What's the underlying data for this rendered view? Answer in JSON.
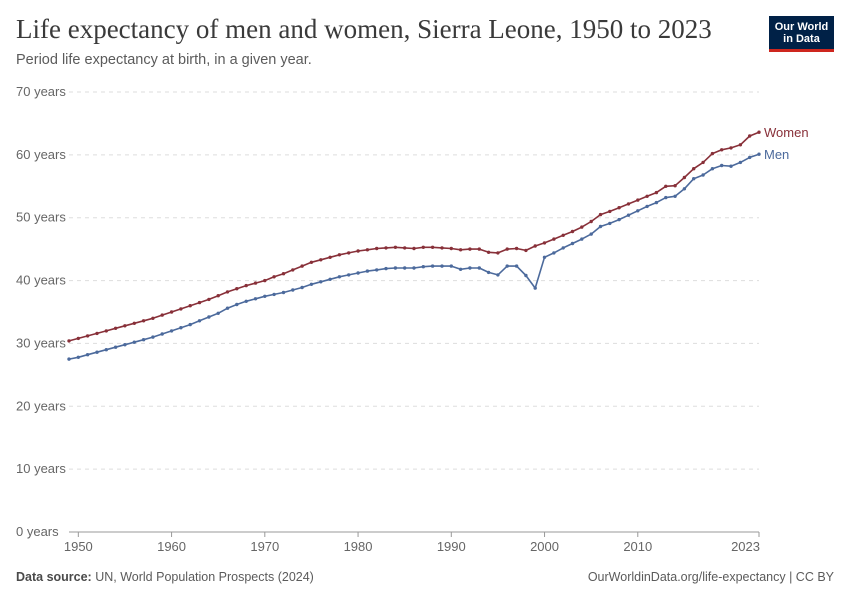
{
  "header": {
    "title": "Life expectancy of men and women, Sierra Leone, 1950 to 2023",
    "subtitle": "Period life expectancy at birth, in a given year."
  },
  "logo": {
    "line1": "Our World",
    "line2": "in Data",
    "bg_color": "#002147",
    "accent_color": "#ce261e"
  },
  "footer": {
    "source_label": "Data source:",
    "source_value": "UN, World Population Prospects (2024)",
    "url": "OurWorldinData.org/life-expectancy | CC BY"
  },
  "chart_data": {
    "type": "line",
    "title": "Life expectancy of men and women, Sierra Leone, 1950 to 2023",
    "subtitle": "Period life expectancy at birth, in a given year.",
    "ylim": [
      0,
      70
    ],
    "xlim": [
      1949,
      2023
    ],
    "y_ticks": [
      0,
      10,
      20,
      30,
      40,
      50,
      60,
      70
    ],
    "y_tick_labels": [
      "0 years",
      "10 years",
      "20 years",
      "30 years",
      "40 years",
      "50 years",
      "60 years",
      "70 years"
    ],
    "x_ticks": [
      1950,
      1960,
      1970,
      1980,
      1990,
      2000,
      2010,
      2023
    ],
    "x_tick_labels": [
      "1950",
      "1960",
      "1970",
      "1980",
      "1990",
      "2000",
      "2010",
      "2023"
    ],
    "grid": "horizontal dashed",
    "legend": "line-end labels, right",
    "x": [
      1949,
      1950,
      1951,
      1952,
      1953,
      1954,
      1955,
      1956,
      1957,
      1958,
      1959,
      1960,
      1961,
      1962,
      1963,
      1964,
      1965,
      1966,
      1967,
      1968,
      1969,
      1970,
      1971,
      1972,
      1973,
      1974,
      1975,
      1976,
      1977,
      1978,
      1979,
      1980,
      1981,
      1982,
      1983,
      1984,
      1985,
      1986,
      1987,
      1988,
      1989,
      1990,
      1991,
      1992,
      1993,
      1994,
      1995,
      1996,
      1997,
      1998,
      1999,
      2000,
      2001,
      2002,
      2003,
      2004,
      2005,
      2006,
      2007,
      2008,
      2009,
      2010,
      2011,
      2012,
      2013,
      2014,
      2015,
      2016,
      2017,
      2018,
      2019,
      2020,
      2021,
      2022,
      2023
    ],
    "series": [
      {
        "name": "Women",
        "color": "#883039",
        "values": [
          30.4,
          30.8,
          31.2,
          31.6,
          32.0,
          32.4,
          32.8,
          33.2,
          33.6,
          34.0,
          34.5,
          35.0,
          35.5,
          36.0,
          36.5,
          37.0,
          37.6,
          38.2,
          38.7,
          39.2,
          39.6,
          40.0,
          40.6,
          41.1,
          41.7,
          42.3,
          42.9,
          43.3,
          43.7,
          44.1,
          44.4,
          44.7,
          44.9,
          45.1,
          45.2,
          45.3,
          45.2,
          45.1,
          45.3,
          45.3,
          45.2,
          45.1,
          44.9,
          45.0,
          45.0,
          44.5,
          44.4,
          45.0,
          45.1,
          44.8,
          45.5,
          46.0,
          46.6,
          47.2,
          47.8,
          48.5,
          49.4,
          50.5,
          51.0,
          51.6,
          52.2,
          52.8,
          53.4,
          54.0,
          55.0,
          55.1,
          56.4,
          57.8,
          58.8,
          60.2,
          60.8,
          61.1,
          61.6,
          63.0,
          63.6
        ]
      },
      {
        "name": "Men",
        "color": "#4c6a9c",
        "values": [
          27.5,
          27.8,
          28.2,
          28.6,
          29.0,
          29.4,
          29.8,
          30.2,
          30.6,
          31.0,
          31.5,
          32.0,
          32.5,
          33.0,
          33.6,
          34.2,
          34.8,
          35.6,
          36.2,
          36.7,
          37.1,
          37.5,
          37.8,
          38.1,
          38.5,
          38.9,
          39.4,
          39.8,
          40.2,
          40.6,
          40.9,
          41.2,
          41.5,
          41.7,
          41.9,
          42.0,
          42.0,
          42.0,
          42.2,
          42.3,
          42.3,
          42.3,
          41.8,
          42.0,
          42.0,
          41.3,
          40.9,
          42.3,
          42.3,
          40.8,
          38.8,
          43.7,
          44.4,
          45.2,
          45.9,
          46.6,
          47.4,
          48.6,
          49.1,
          49.7,
          50.4,
          51.1,
          51.8,
          52.4,
          53.2,
          53.4,
          54.6,
          56.2,
          56.8,
          57.8,
          58.3,
          58.2,
          58.8,
          59.6,
          60.1
        ]
      }
    ]
  }
}
